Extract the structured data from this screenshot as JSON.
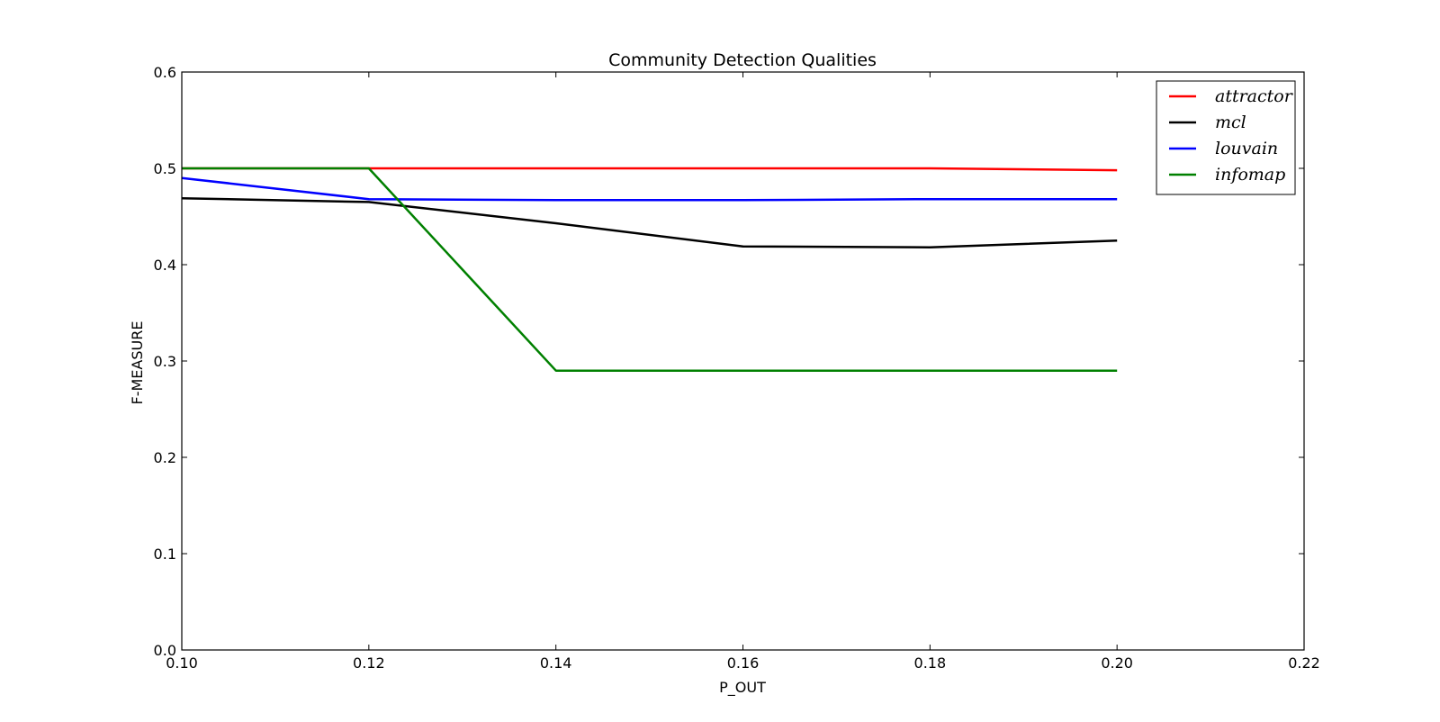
{
  "chart_data": {
    "type": "line",
    "title": "Community Detection Qualities",
    "xlabel": "P_OUT",
    "ylabel": "F-MEASURE",
    "xlim": [
      0.1,
      0.22
    ],
    "ylim": [
      0.0,
      0.6
    ],
    "xticks": [
      "0.10",
      "0.12",
      "0.14",
      "0.16",
      "0.18",
      "0.20",
      "0.22"
    ],
    "yticks": [
      "0.0",
      "0.1",
      "0.2",
      "0.3",
      "0.4",
      "0.5",
      "0.6"
    ],
    "x": [
      0.1,
      0.12,
      0.14,
      0.16,
      0.18,
      0.2
    ],
    "grid": false,
    "legend_position": "top-right",
    "series": [
      {
        "name": "attractor",
        "color": "#ff0000",
        "values": [
          0.5,
          0.5,
          0.5,
          0.5,
          0.5,
          0.498
        ]
      },
      {
        "name": "mcl",
        "color": "#000000",
        "values": [
          0.469,
          0.465,
          0.443,
          0.419,
          0.418,
          0.425
        ]
      },
      {
        "name": "louvain",
        "color": "#0000ff",
        "values": [
          0.49,
          0.468,
          0.467,
          0.467,
          0.468,
          0.468
        ]
      },
      {
        "name": "infomap",
        "color": "#008000",
        "values": [
          0.5,
          0.5,
          0.29,
          0.29,
          0.29,
          0.29
        ]
      }
    ]
  }
}
